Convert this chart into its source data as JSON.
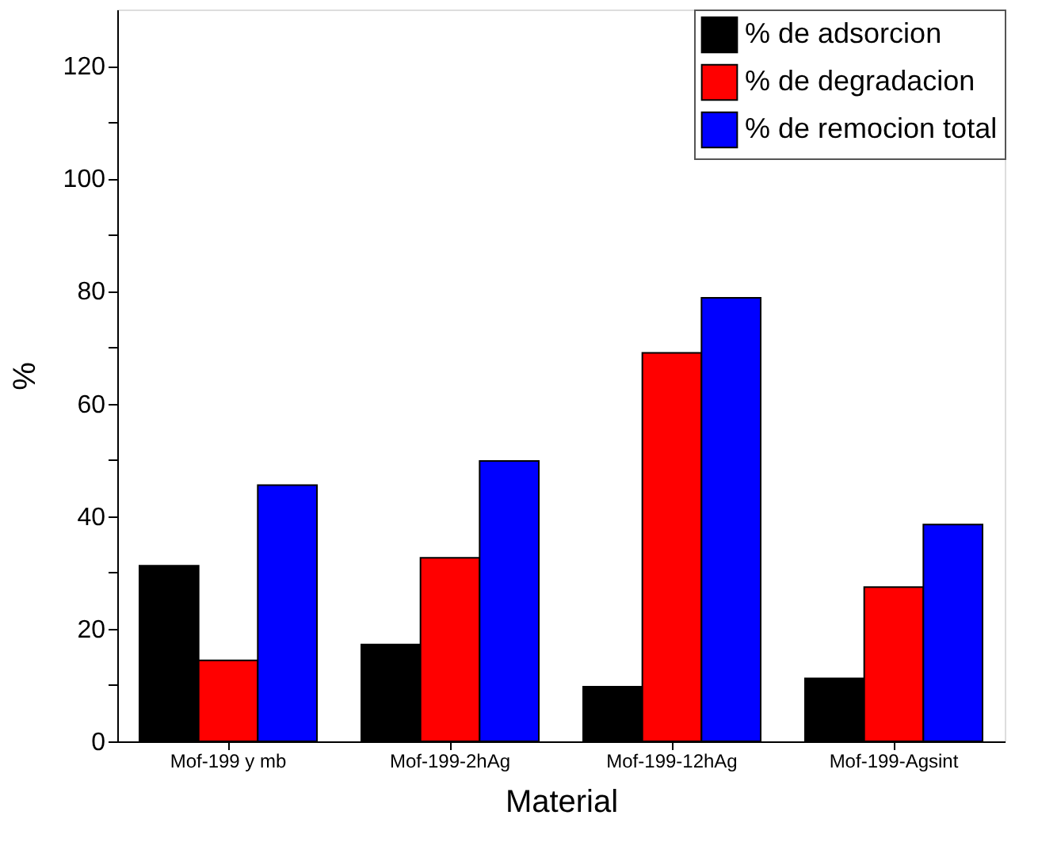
{
  "chart_data": {
    "type": "bar",
    "xlabel": "Material",
    "ylabel": "%",
    "categories": [
      "Mof-199 y mb",
      "Mof-199-2hAg",
      "Mof-199-12hAg",
      "Mof-199-Agsint"
    ],
    "series": [
      {
        "name": "% de adsorcion",
        "color": "#000000",
        "values": [
          31.2,
          17.2,
          9.7,
          11.2
        ]
      },
      {
        "name": "% de degradacion",
        "color": "#ff0000",
        "values": [
          14.4,
          32.6,
          69,
          27.4
        ]
      },
      {
        "name": "% de remocion total",
        "color": "#0000ff",
        "values": [
          45.5,
          49.8,
          78.8,
          38.5
        ]
      }
    ],
    "ylim": [
      0,
      130
    ],
    "yticks": [
      0,
      {
        "value": 10,
        "label": null
      },
      20,
      {
        "value": 30,
        "label": null
      },
      40,
      {
        "value": 50,
        "label": null
      },
      60,
      {
        "value": 70,
        "label": null
      },
      80,
      {
        "value": 90,
        "label": null
      },
      100,
      {
        "value": 110,
        "label": null
      },
      120
    ],
    "legend": "top right",
    "grid": false
  }
}
